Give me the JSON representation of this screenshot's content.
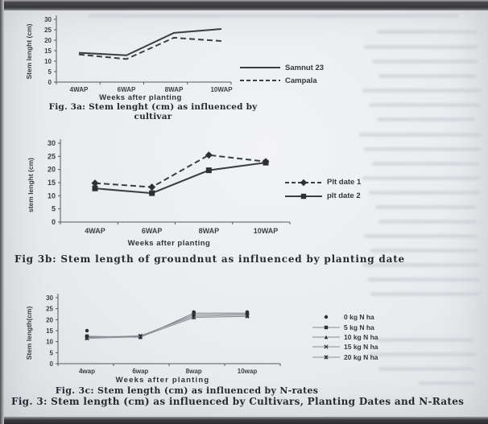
{
  "page": {
    "overall_caption": "Fig. 3: Stem length (cm) as influenced by Cultivars, Planting Dates and N-Rates"
  },
  "colors": {
    "paper": "#e9ebee",
    "frame": "#3a3a3d",
    "ink": "#3a3d42",
    "thin_line": "#878d94",
    "axis": "#54585e",
    "marker": "#2c2f34",
    "caption_ink": "#26292e"
  },
  "chart_data": [
    {
      "type": "line",
      "fig": "3a",
      "ylabel": "Stem lenght (cm)",
      "xlabel": "Weeks after planting",
      "categories": [
        "4WAP",
        "6WAP",
        "8WAP",
        "10WAP"
      ],
      "ylim": [
        0,
        30
      ],
      "ytick": 5,
      "grid": false,
      "legend_position": "right",
      "series": [
        {
          "name": "Samnut 23",
          "values": [
            14,
            12.8,
            23.5,
            25.4
          ],
          "line": "solid",
          "marker": "none"
        },
        {
          "name": "Campala",
          "values": [
            13.2,
            11,
            21.2,
            19.6
          ],
          "line": "dashed",
          "marker": "none"
        }
      ],
      "caption_lines": [
        "Fig. 3a:  Stem lenght (cm) as influenced by",
        "cultivar"
      ]
    },
    {
      "type": "line",
      "fig": "3b",
      "ylabel": "stem lenght (cm)",
      "xlabel": "Weeks after planting",
      "categories": [
        "4WAP",
        "6WAP",
        "8WAP",
        "10WAP"
      ],
      "ylim": [
        0,
        30
      ],
      "ytick": 5,
      "grid": false,
      "legend_position": "right",
      "series": [
        {
          "name": "Plt date 1",
          "values": [
            14.8,
            13.3,
            25.5,
            23
          ],
          "line": "dashed",
          "marker": "diamond"
        },
        {
          "name": "plt date 2",
          "values": [
            12.8,
            11,
            19.7,
            22.6
          ],
          "line": "solid",
          "marker": "square"
        }
      ],
      "caption_lines": [
        "Fig 3b: Stem length of groundnut as influenced by planting date"
      ]
    },
    {
      "type": "line",
      "fig": "3c",
      "ylabel": "Stem length(cm)",
      "xlabel": "Weeks after planting",
      "categories": [
        "4wap",
        "6wap",
        "8wap",
        "10wap"
      ],
      "ylim": [
        0,
        30
      ],
      "ytick": 5,
      "grid": false,
      "legend_position": "right",
      "series": [
        {
          "name": "0 kg N ha",
          "values": [
            15,
            12.5,
            23.5,
            23.5
          ],
          "line": "none",
          "marker": "circle"
        },
        {
          "name": "5 kg N ha",
          "values": [
            12.5,
            12,
            23,
            23
          ],
          "line": "thin",
          "marker": "square"
        },
        {
          "name": "10 kg N ha",
          "values": [
            12.2,
            12.4,
            22.3,
            22.6
          ],
          "line": "thin",
          "marker": "triangle"
        },
        {
          "name": "15 kg N ha",
          "values": [
            11.8,
            12.7,
            21.6,
            22
          ],
          "line": "thin",
          "marker": "x"
        },
        {
          "name": "20 kg N ha",
          "values": [
            11.5,
            12.2,
            21,
            21.5
          ],
          "line": "thin",
          "marker": "star"
        }
      ],
      "caption_lines": [
        "Fig. 3c: Stem length (cm) as influenced by N-rates"
      ]
    }
  ]
}
